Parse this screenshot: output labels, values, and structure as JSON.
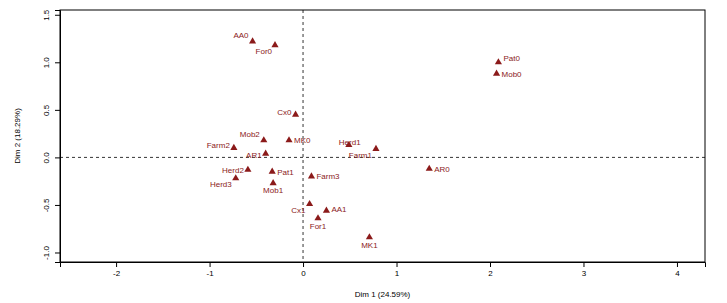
{
  "chart_data": {
    "type": "scatter",
    "x_label": "Dim 1 (24.59%)",
    "y_label": "Dim 2 (18.29%)",
    "labels": [
      "AA0",
      "For0",
      "Pat0",
      "Mob0",
      "Cx0",
      "Mob2",
      "MK0",
      "Herd1",
      "Farm1",
      "Farm2",
      "AR1",
      "AR0",
      "Herd2",
      "Pat1",
      "Herd3",
      "Mob1",
      "Farm3",
      "Cx1",
      "AA1",
      "For1",
      "MK1"
    ],
    "x": [
      -0.54,
      -0.3,
      2.09,
      2.07,
      -0.08,
      -0.42,
      -0.15,
      0.49,
      0.78,
      -0.74,
      -0.4,
      1.35,
      -0.59,
      -0.33,
      -0.72,
      -0.32,
      0.09,
      0.07,
      0.25,
      0.16,
      0.71
    ],
    "values": [
      1.22,
      1.18,
      1.0,
      0.88,
      0.45,
      0.18,
      0.18,
      0.13,
      0.09,
      0.1,
      0.04,
      -0.12,
      -0.13,
      -0.15,
      -0.22,
      -0.27,
      -0.2,
      -0.49,
      -0.56,
      -0.64,
      -0.84
    ],
    "color": "#8b1a1a",
    "marker": "triangle",
    "xlim": [
      -2.6,
      4.3
    ],
    "ylim": [
      -1.1,
      1.55
    ],
    "xticks": [
      -2,
      -1,
      0,
      1,
      2,
      3,
      4
    ],
    "yticks": [
      {
        "value": -1.0,
        "label": "-1.0"
      },
      {
        "value": -0.5,
        "label": "-0.5"
      },
      {
        "value": 0,
        "label": "0.0"
      },
      {
        "value": 0.5,
        "label": "0.5"
      },
      {
        "value": 1.0,
        "label": "1.0"
      },
      {
        "value": 1.5,
        "label": "1.5"
      }
    ]
  }
}
